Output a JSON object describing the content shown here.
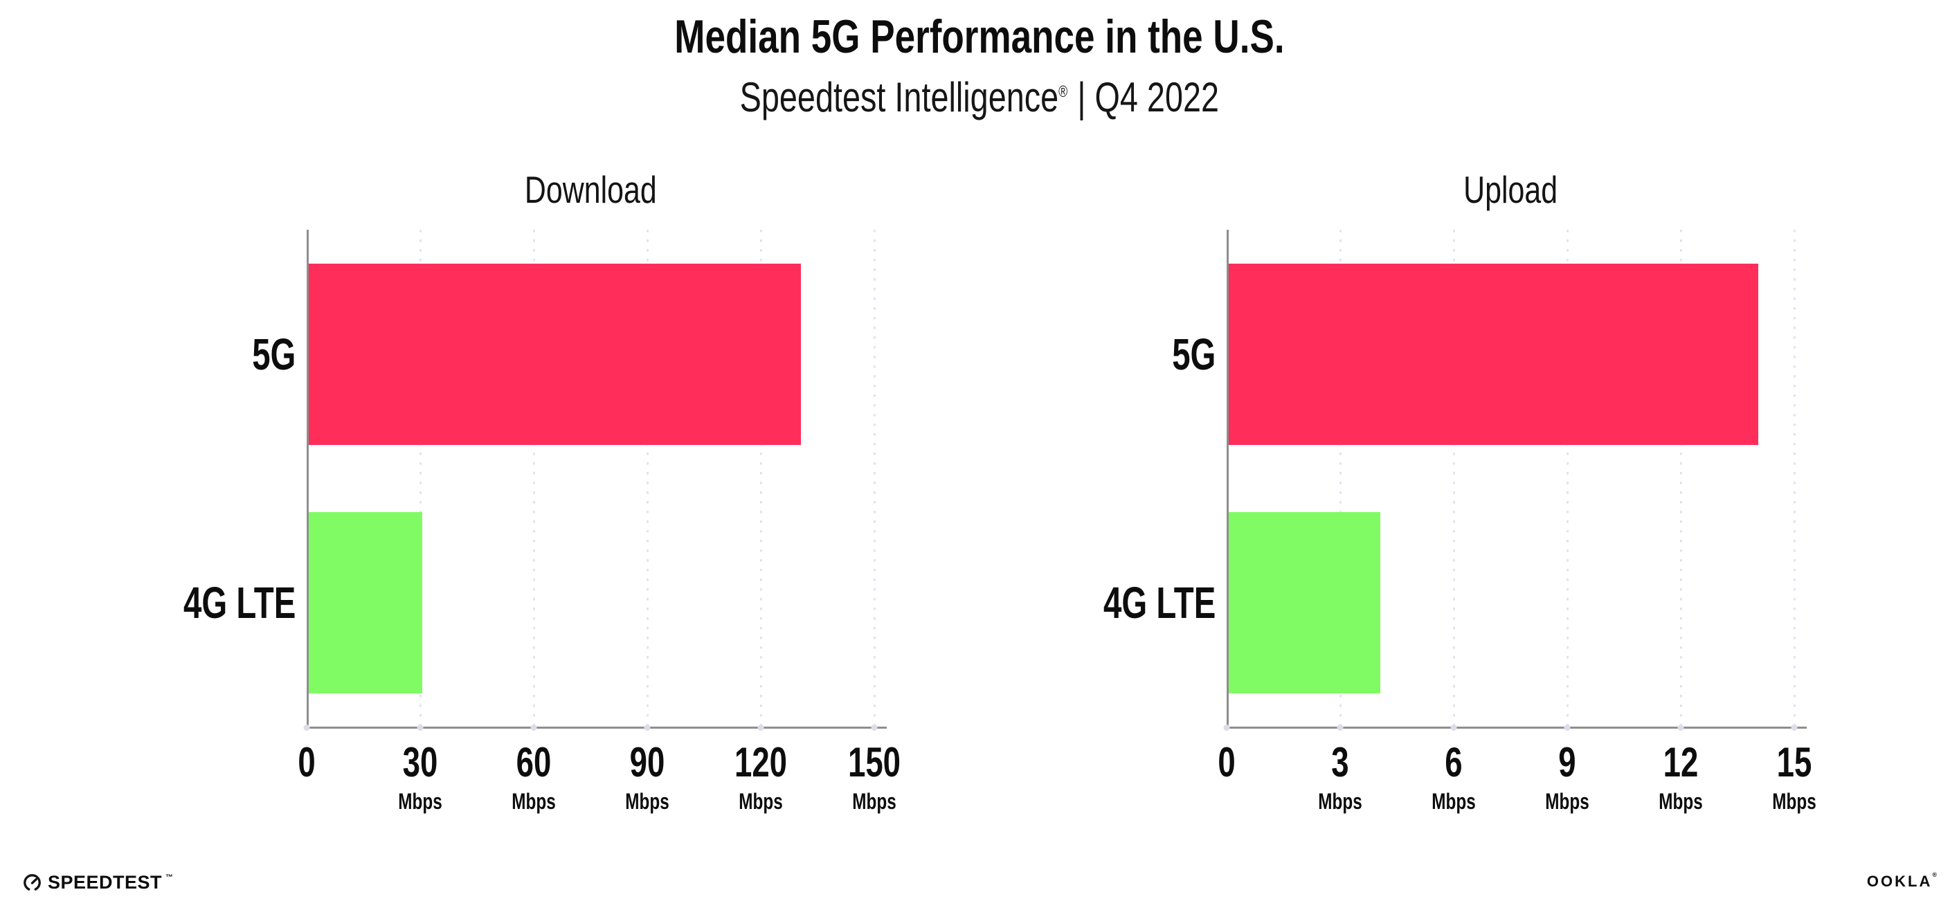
{
  "header": {
    "title": "Median 5G Performance in the U.S.",
    "subtitle_brand": "Speedtest Intelligence",
    "subtitle_reg": "®",
    "subtitle_rest": "| Q4 2022"
  },
  "chart_data": [
    {
      "type": "bar",
      "orientation": "horizontal",
      "title": "Download",
      "categories": [
        "5G",
        "4G LTE"
      ],
      "values": [
        130,
        30
      ],
      "unit": "Mbps",
      "xlim": [
        0,
        150
      ],
      "ticks": [
        0,
        30,
        60,
        90,
        120,
        150
      ],
      "bar_colors": [
        "#FF2D5A",
        "#80FB64"
      ],
      "grid": "dotted-vertical-gridlines",
      "legend": "none"
    },
    {
      "type": "bar",
      "orientation": "horizontal",
      "title": "Upload",
      "categories": [
        "5G",
        "4G LTE"
      ],
      "values": [
        14,
        4
      ],
      "unit": "Mbps",
      "xlim": [
        0,
        15
      ],
      "ticks": [
        0,
        3,
        6,
        9,
        12,
        15
      ],
      "bar_colors": [
        "#FF2D5A",
        "#80FB64"
      ],
      "grid": "dotted-vertical-gridlines",
      "legend": "none"
    }
  ],
  "footer": {
    "speedtest_label": "SPEEDTEST",
    "speedtest_tm": "™",
    "ookla_label": "OOKLA",
    "ookla_reg": "®"
  },
  "colors": {
    "bar_5g": "#FF2D5A",
    "bar_4g_lte": "#80FB64",
    "gridline": "#E2E2F0",
    "axis": "#8E8E8E",
    "text": "#0D0D0D"
  }
}
